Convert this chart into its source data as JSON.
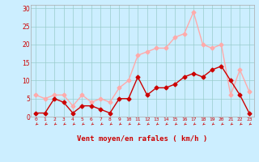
{
  "x": [
    0,
    1,
    2,
    3,
    4,
    5,
    6,
    7,
    8,
    9,
    10,
    11,
    12,
    13,
    14,
    15,
    16,
    17,
    18,
    19,
    20,
    21,
    22,
    23
  ],
  "wind_avg": [
    1,
    1,
    5,
    4,
    1,
    3,
    3,
    2,
    1,
    5,
    5,
    11,
    6,
    8,
    8,
    9,
    11,
    12,
    11,
    13,
    14,
    10,
    6,
    1
  ],
  "wind_gust": [
    6,
    5,
    6,
    6,
    3,
    6,
    4,
    5,
    4,
    8,
    10,
    17,
    18,
    19,
    19,
    22,
    23,
    29,
    20,
    19,
    20,
    6,
    13,
    7
  ],
  "avg_color": "#cc0000",
  "gust_color": "#ffaaaa",
  "bg_color": "#cceeff",
  "grid_color": "#99cccc",
  "ylabel_ticks": [
    0,
    5,
    10,
    15,
    20,
    25,
    30
  ],
  "ylim": [
    0,
    31
  ],
  "xlim": [
    -0.5,
    23.5
  ],
  "xlabel": "Vent moyen/en rafales ( km/h )",
  "xlabel_color": "#cc0000",
  "tick_color": "#cc0000",
  "markersize": 2.5,
  "linewidth": 1.0
}
